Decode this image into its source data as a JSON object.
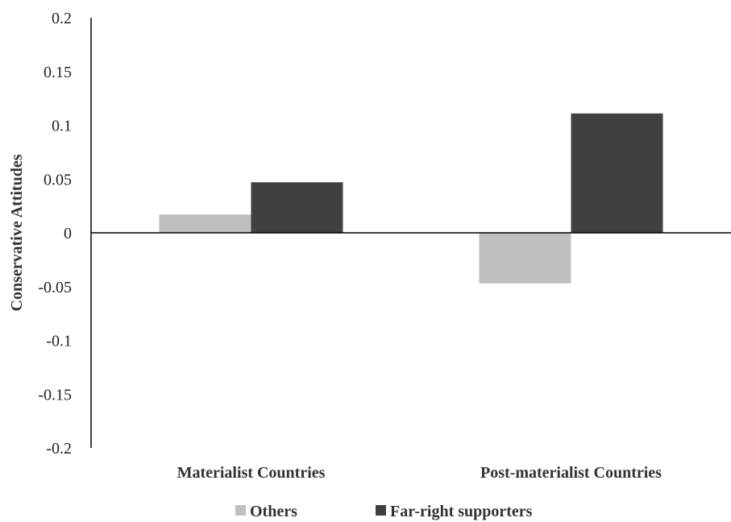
{
  "chart_data": {
    "type": "bar",
    "categories": [
      "Materialist Countries",
      "Post-materialist Countries"
    ],
    "series": [
      {
        "name": "Others",
        "values": [
          0.017,
          -0.047
        ],
        "color": "#bfbfbf"
      },
      {
        "name": "Far-right supporters",
        "values": [
          0.047,
          0.111
        ],
        "color": "#404040"
      }
    ],
    "ylabel": "Conservative Attitudes",
    "ylim": [
      -0.2,
      0.2
    ],
    "yticks": [
      0.2,
      0.15,
      0.1,
      0.05,
      0,
      -0.05,
      -0.1,
      -0.15,
      -0.2
    ],
    "ytick_labels": [
      "0.2",
      "0.15",
      "0.1",
      "0.05",
      "0",
      "-0.05",
      "-0.1",
      "-0.15",
      "-0.2"
    ],
    "grid": false,
    "legend_position": "bottom-center"
  }
}
